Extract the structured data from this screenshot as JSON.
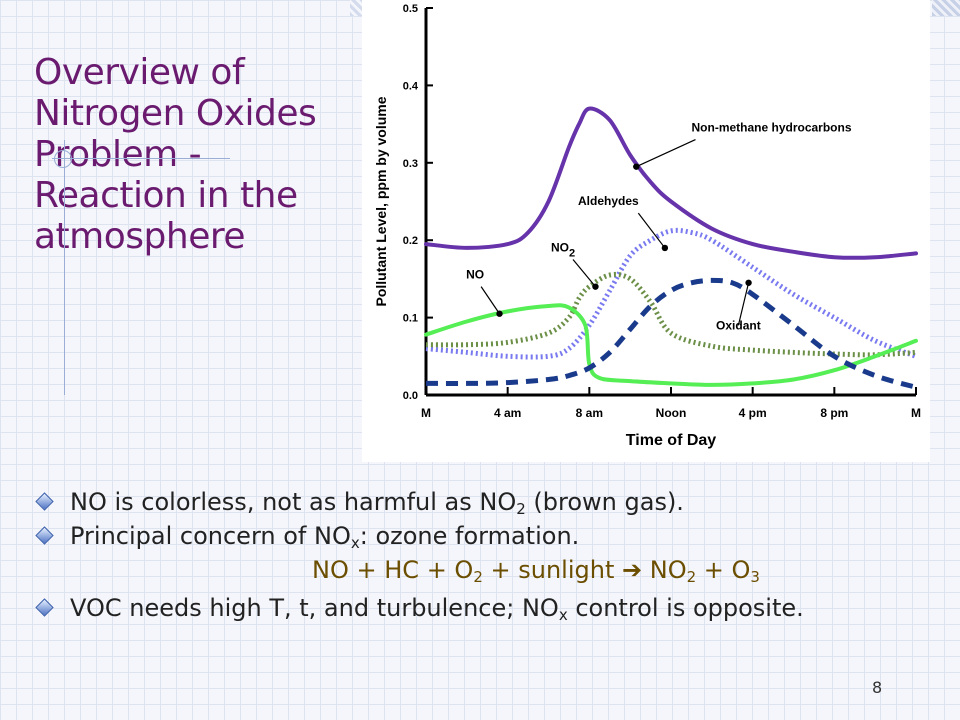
{
  "slide": {
    "title": "Overview of Nitrogen Oxides Problem - Reaction in the atmosphere",
    "page_number": "8"
  },
  "bullets": [
    {
      "pre": "NO is colorless, not as harmful as NO",
      "sub": "2",
      "post": " (brown gas)."
    },
    {
      "pre": "Principal concern of NO",
      "sub": "x",
      "post": ": ozone formation."
    },
    {
      "pre": "VOC needs high T, t, and turbulence; NO",
      "sub": "x",
      "post": " control is opposite."
    }
  ],
  "formula": {
    "left": "NO + HC + O",
    "left_sub": "2",
    "mid": " + sunlight ",
    "arrow": "➔",
    "right_a": " NO",
    "right_a_sub": "2",
    "right_b": " + O",
    "right_b_sub": "3"
  },
  "chart_data": {
    "type": "line",
    "xlabel": "Time of Day",
    "ylabel": "Pollutant Level, ppm by volume",
    "x_ticks": [
      "M",
      "4 am",
      "8 am",
      "Noon",
      "4 pm",
      "8 pm",
      "M"
    ],
    "x_tick_hours": [
      0,
      4,
      8,
      12,
      16,
      20,
      24
    ],
    "y_ticks": [
      "0.0",
      "0.1",
      "0.2",
      "0.3",
      "0.4",
      "0.5"
    ],
    "xlim": [
      0,
      24
    ],
    "ylim": [
      0,
      0.5
    ],
    "grid": false,
    "series": [
      {
        "name": "Non-methane hydrocarbons",
        "color": "#6633aa",
        "style": "solid",
        "x": [
          0,
          2,
          4,
          5,
          6,
          7,
          7.5,
          8,
          9,
          10,
          11,
          12,
          14,
          16,
          18,
          20,
          22,
          24
        ],
        "y": [
          0.195,
          0.19,
          0.195,
          0.21,
          0.25,
          0.32,
          0.35,
          0.37,
          0.355,
          0.31,
          0.275,
          0.25,
          0.215,
          0.195,
          0.185,
          0.178,
          0.178,
          0.183
        ]
      },
      {
        "name": "Aldehydes",
        "color": "#7a7af0",
        "style": "dotted",
        "x": [
          0,
          2,
          4,
          6,
          7,
          8,
          9,
          10,
          11,
          12,
          13,
          14,
          16,
          18,
          20,
          22,
          24
        ],
        "y": [
          0.06,
          0.055,
          0.05,
          0.05,
          0.06,
          0.09,
          0.135,
          0.18,
          0.2,
          0.212,
          0.21,
          0.2,
          0.165,
          0.13,
          0.1,
          0.07,
          0.05
        ]
      },
      {
        "name": "NO2",
        "color": "#6b8f47",
        "style": "dotted",
        "x": [
          0,
          2,
          4,
          6,
          7,
          7.5,
          8,
          9,
          10,
          11,
          12,
          14,
          16,
          18,
          20,
          22,
          24
        ],
        "y": [
          0.065,
          0.065,
          0.068,
          0.08,
          0.1,
          0.125,
          0.14,
          0.155,
          0.15,
          0.12,
          0.08,
          0.063,
          0.058,
          0.055,
          0.053,
          0.052,
          0.055
        ]
      },
      {
        "name": "NO",
        "color": "#55ee55",
        "style": "solid",
        "x": [
          0,
          2,
          4,
          6,
          7,
          7.8,
          8,
          8.5,
          10,
          12,
          14,
          16,
          18,
          20,
          22,
          24
        ],
        "y": [
          0.078,
          0.095,
          0.108,
          0.115,
          0.113,
          0.09,
          0.04,
          0.022,
          0.018,
          0.015,
          0.013,
          0.015,
          0.02,
          0.032,
          0.05,
          0.07
        ]
      },
      {
        "name": "Oxidant",
        "color": "#1a3a8c",
        "style": "dashed",
        "x": [
          0,
          2,
          4,
          6,
          7,
          8,
          9,
          10,
          11,
          12,
          13,
          14,
          15,
          16,
          18,
          20,
          22,
          24
        ],
        "y": [
          0.015,
          0.015,
          0.016,
          0.02,
          0.025,
          0.035,
          0.055,
          0.085,
          0.115,
          0.135,
          0.145,
          0.148,
          0.145,
          0.13,
          0.09,
          0.05,
          0.025,
          0.01
        ]
      }
    ],
    "annotations": [
      {
        "text": "Non-methane hydrocarbons",
        "series": "Non-methane hydrocarbons",
        "x": 10.3,
        "y": 0.295,
        "label_x": 13.2,
        "label_y": 0.33
      },
      {
        "text": "Aldehydes",
        "series": "Aldehydes",
        "x": 11.7,
        "y": 0.19,
        "label_x": 10.4,
        "label_y": 0.235
      },
      {
        "text": "NO",
        "sub": "2",
        "series": "NO2",
        "x": 8.3,
        "y": 0.14,
        "label_x": 7.2,
        "label_y": 0.175
      },
      {
        "text": "NO",
        "series": "NO",
        "x": 3.6,
        "y": 0.105,
        "label_x": 2.7,
        "label_y": 0.14
      },
      {
        "text": "Oxidant",
        "series": "Oxidant",
        "x": 15.8,
        "y": 0.145,
        "label_x": 15.3,
        "label_y": 0.09
      }
    ]
  }
}
